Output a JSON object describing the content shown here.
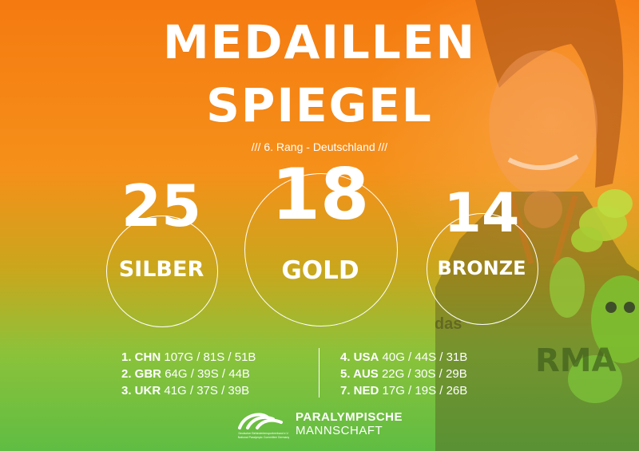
{
  "header": {
    "title_line1": "MEDAILLEN",
    "title_line2": "SPIEGEL",
    "subtitle": "/// 6. Rang - Deutschland ///"
  },
  "medals": {
    "silver": {
      "count": "25",
      "label": "SILBER"
    },
    "gold": {
      "count": "18",
      "label": "GOLD"
    },
    "bronze": {
      "count": "14",
      "label": "BRONZE"
    }
  },
  "rankings": {
    "left": [
      {
        "rank": "1. CHN",
        "stats": "107G / 81S / 51B"
      },
      {
        "rank": "2. GBR",
        "stats": "64G / 39S / 44B"
      },
      {
        "rank": "3. UKR",
        "stats": "41G / 37S / 39B"
      }
    ],
    "right": [
      {
        "rank": "4. USA",
        "stats": "40G / 44S / 31B"
      },
      {
        "rank": "5. AUS",
        "stats": "22G / 30S / 29B"
      },
      {
        "rank": "7. NED",
        "stats": "17G / 19S / 26B"
      }
    ]
  },
  "footer": {
    "brand_line1": "PARALYMPISCHE",
    "brand_line2": "MANNSCHAFT",
    "org_line1": "Deutscher Behindertensportverband e.V.",
    "org_line2": "National Paralympic Committee Germany"
  },
  "photo": {
    "shirt_text": "adidas",
    "banner_text": "RMA"
  },
  "colors": {
    "top": "#f57a10",
    "middle": "#c9a71d",
    "bottom": "#5fbd43",
    "text": "#ffffff"
  }
}
